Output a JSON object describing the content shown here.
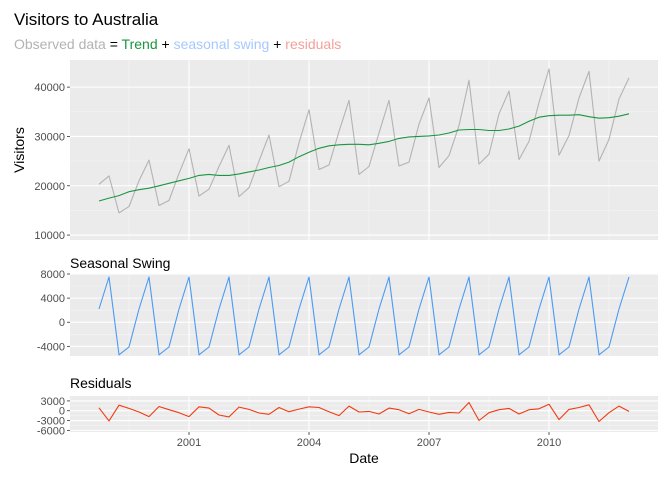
{
  "title": "Visitors to Australia",
  "subtitle": {
    "observed": "Observed data",
    "eq": " = ",
    "trend": "Trend",
    "plus1": " + ",
    "seasonal": "seasonal swing",
    "plus2": " + ",
    "residuals": "residuals"
  },
  "colors": {
    "observed": "#B3B3B3",
    "trend": "#1A9641",
    "seasonal": "#4A9BF5",
    "residuals": "#F23B11",
    "subtitle_observed": "#B3B3B3",
    "subtitle_trend": "#1A9641",
    "subtitle_seasonal": "#A6C8FF",
    "subtitle_residuals": "#F4A09A",
    "panel_bg": "#EBEBEB"
  },
  "chart_data": [
    {
      "type": "line",
      "title": "",
      "ylabel": "Visitors",
      "xlabel": "",
      "ylim": [
        9000,
        45500
      ],
      "yticks": [
        10000,
        20000,
        30000,
        40000
      ],
      "ytick_labels": [
        "10000",
        "20000",
        "30000",
        "40000"
      ],
      "grid": true,
      "x_start": "1998 Q4",
      "x_frequency": "quarterly",
      "series": [
        {
          "key": "observed",
          "values": [
            20300,
            22000,
            14500,
            15800,
            21000,
            25200,
            16000,
            17000,
            22500,
            27500,
            17900,
            19300,
            23900,
            28200,
            17800,
            19600,
            25000,
            30300,
            19800,
            20900,
            28700,
            35400,
            23300,
            24200,
            31000,
            37300,
            22300,
            23900,
            30700,
            37300,
            24000,
            24800,
            32500,
            37800,
            23700,
            26100,
            32200,
            41400,
            24400,
            26400,
            34600,
            39200,
            25300,
            29000,
            36900,
            43700,
            26200,
            30200,
            37800,
            43200,
            25000,
            29400,
            37600,
            41900
          ]
        },
        {
          "key": "trend",
          "values": [
            16900,
            17500,
            18000,
            18800,
            19200,
            19500,
            20000,
            20500,
            21000,
            21500,
            22100,
            22300,
            22100,
            22100,
            22400,
            22800,
            23200,
            23700,
            24100,
            24800,
            25900,
            26800,
            27600,
            28100,
            28300,
            28400,
            28400,
            28300,
            28600,
            29000,
            29600,
            29900,
            30000,
            30100,
            30300,
            30700,
            31300,
            31400,
            31400,
            31200,
            31200,
            31500,
            32100,
            33100,
            33900,
            34200,
            34300,
            34300,
            34400,
            34000,
            33700,
            33800,
            34100,
            34600
          ]
        }
      ]
    },
    {
      "type": "line",
      "title": "Seasonal Swing",
      "ylabel": "",
      "xlabel": "",
      "ylim": [
        -5600,
        8000
      ],
      "yticks": [
        -4000,
        0,
        4000,
        8000
      ],
      "ytick_labels": [
        "-4000",
        "0",
        "4000",
        "8000"
      ],
      "grid": true,
      "x_start": "1998 Q4",
      "x_frequency": "quarterly",
      "series": [
        {
          "key": "seasonal",
          "values": [
            2200,
            7500,
            -5400,
            -4100,
            2200,
            7500,
            -5400,
            -4100,
            2200,
            7500,
            -5400,
            -4100,
            2200,
            7500,
            -5400,
            -4100,
            2200,
            7500,
            -5400,
            -4100,
            2200,
            7500,
            -5400,
            -4100,
            2200,
            7500,
            -5400,
            -4100,
            2200,
            7500,
            -5400,
            -4100,
            2200,
            7500,
            -5400,
            -4100,
            2200,
            7500,
            -5400,
            -4100,
            2200,
            7500,
            -5400,
            -4100,
            2200,
            7500,
            -5400,
            -4100,
            2200,
            7500,
            -5400,
            -4100,
            2200,
            7500
          ]
        }
      ]
    },
    {
      "type": "line",
      "title": "Residuals",
      "ylabel": "",
      "xlabel": "Date",
      "ylim": [
        -6500,
        4500
      ],
      "yticks": [
        -6000,
        -3000,
        0,
        3000
      ],
      "ytick_labels": [
        "-6000",
        "-3000",
        "0",
        "3000"
      ],
      "xticks": [
        "2001",
        "2004",
        "2007",
        "2010"
      ],
      "grid": true,
      "x_start": "1998 Q4",
      "x_frequency": "quarterly",
      "series": [
        {
          "key": "residuals",
          "values": [
            900,
            -3100,
            1700,
            700,
            -400,
            -1800,
            1300,
            300,
            -600,
            -1800,
            1200,
            800,
            -1300,
            -1900,
            1100,
            400,
            -700,
            -1100,
            1000,
            -300,
            500,
            1200,
            1000,
            -300,
            -1500,
            1400,
            -400,
            -200,
            -1000,
            800,
            300,
            -900,
            400,
            -400,
            -1100,
            -500,
            -700,
            2500,
            -3000,
            -600,
            300,
            700,
            -1000,
            300,
            600,
            2000,
            -2700,
            400,
            1000,
            1800,
            -3300,
            -600,
            1400,
            -200
          ]
        }
      ]
    }
  ]
}
